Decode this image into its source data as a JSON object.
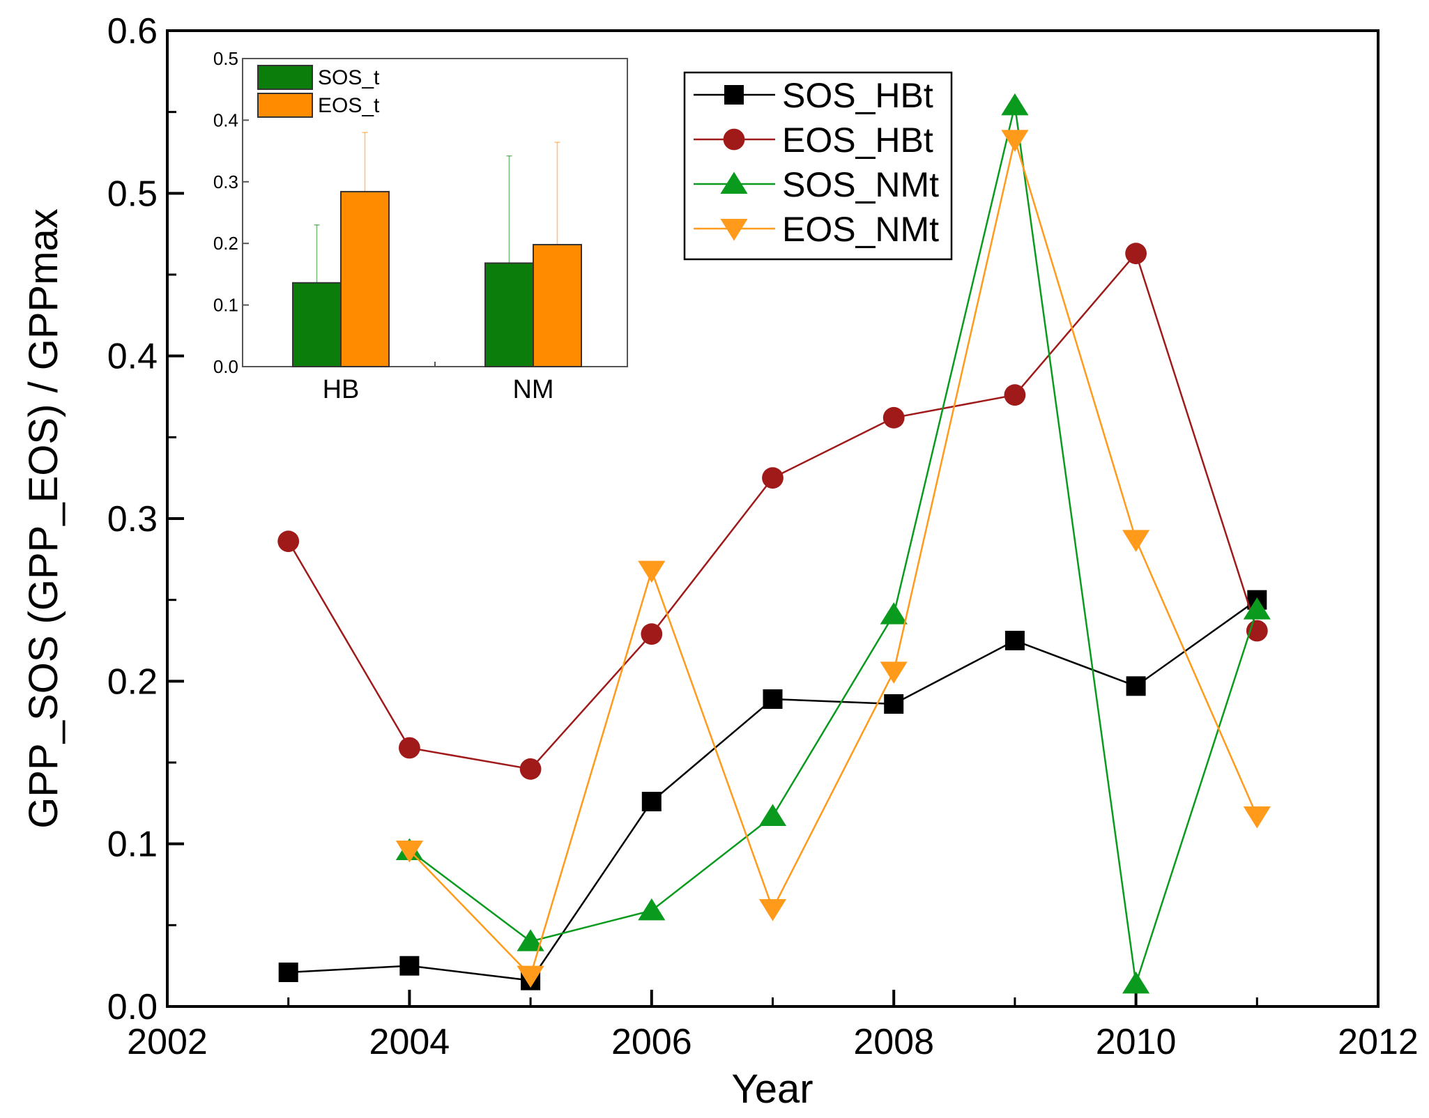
{
  "chart_data": [
    {
      "type": "line",
      "xlabel": "Year",
      "ylabel": "GPP_SOS (GPP_EOS) / GPPmax",
      "xlim": [
        2002,
        2012
      ],
      "ylim": [
        0,
        0.6
      ],
      "x_ticks": [
        "2002",
        "2004",
        "2006",
        "2008",
        "2010",
        "2012"
      ],
      "y_ticks": [
        "0.0",
        "0.1",
        "0.2",
        "0.3",
        "0.4",
        "0.5",
        "0.6"
      ],
      "grid": false,
      "legend_position": "top-right",
      "series": [
        {
          "name": "SOS_HBt",
          "color": "#000000",
          "marker": "square",
          "points": [
            [
              2003,
              0.021
            ],
            [
              2004,
              0.025
            ],
            [
              2005,
              0.016
            ],
            [
              2006,
              0.126
            ],
            [
              2007,
              0.189
            ],
            [
              2008,
              0.186
            ],
            [
              2009,
              0.225
            ],
            [
              2010,
              0.197
            ],
            [
              2011,
              0.25
            ]
          ]
        },
        {
          "name": "EOS_HBt",
          "color": "#a01a1a",
          "marker": "circle",
          "points": [
            [
              2003,
              0.286
            ],
            [
              2004,
              0.159
            ],
            [
              2005,
              0.146
            ],
            [
              2006,
              0.229
            ],
            [
              2007,
              0.325
            ],
            [
              2008,
              0.362
            ],
            [
              2009,
              0.376
            ],
            [
              2010,
              0.463
            ],
            [
              2011,
              0.231
            ]
          ]
        },
        {
          "name": "SOS_NMt",
          "color": "#0a9b1e",
          "marker": "triangle-up",
          "points": [
            [
              2004,
              0.096
            ],
            [
              2005,
              0.04
            ],
            [
              2006,
              0.059
            ],
            [
              2007,
              0.117
            ],
            [
              2008,
              0.241
            ],
            [
              2009,
              0.554
            ],
            [
              2010,
              0.014
            ],
            [
              2011,
              0.244
            ]
          ]
        },
        {
          "name": "EOS_NMt",
          "color": "#ff9a1a",
          "marker": "triangle-down",
          "points": [
            [
              2004,
              0.096
            ],
            [
              2005,
              0.019
            ],
            [
              2006,
              0.268
            ],
            [
              2007,
              0.06
            ],
            [
              2008,
              0.206
            ],
            [
              2009,
              0.533
            ],
            [
              2010,
              0.287
            ],
            [
              2011,
              0.117
            ]
          ]
        }
      ]
    },
    {
      "type": "bar",
      "categories": [
        "HB",
        "NM"
      ],
      "ylim": [
        0,
        0.5
      ],
      "y_ticks": [
        "0.0",
        "0.1",
        "0.2",
        "0.3",
        "0.4",
        "0.5"
      ],
      "legend_position": "top-left",
      "series": [
        {
          "name": "SOS_t",
          "color": "#0a7d0a",
          "values": [
            0.136,
            0.168
          ],
          "errors": [
            0.094,
            0.174
          ]
        },
        {
          "name": "EOS_t",
          "color": "#ff8c00",
          "values": [
            0.284,
            0.198
          ],
          "errors": [
            0.096,
            0.166
          ]
        }
      ]
    }
  ]
}
